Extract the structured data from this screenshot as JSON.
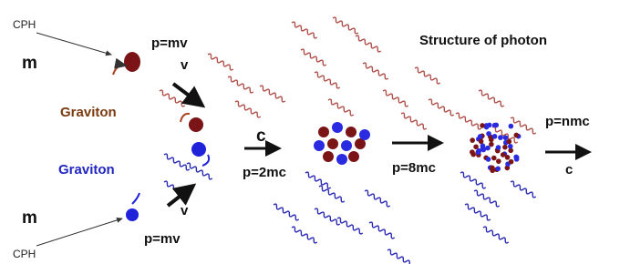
{
  "title": "Structure of photon",
  "labels": {
    "cph_top": "CPH",
    "m_top": "m",
    "p_top": "p=mv",
    "v_top": "v",
    "graviton_brown": "Graviton",
    "graviton_blue": "Graviton",
    "m_bottom": "m",
    "cph_bottom": "CPH",
    "v_bottom": "v",
    "p_bottom": "p=mv",
    "c_first": "c",
    "p_2": "p=2mc",
    "p_8": "p=8mc",
    "p_n": "p=nmc",
    "c_last": "c"
  }
}
